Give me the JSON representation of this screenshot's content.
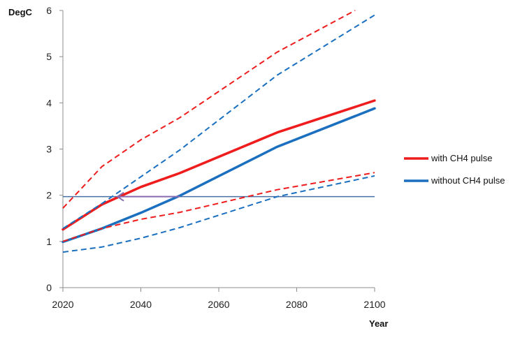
{
  "chart_data": {
    "type": "line",
    "ylabel": "DegC",
    "xlabel": "Year",
    "xlim": [
      2020,
      2100
    ],
    "ylim": [
      0,
      6
    ],
    "x_ticks": [
      "2020",
      "2040",
      "2060",
      "2080",
      "2100"
    ],
    "y_ticks": [
      "0",
      "1",
      "2",
      "3",
      "4",
      "5",
      "6"
    ],
    "grid": false,
    "legend_position": "right",
    "reference_line": {
      "y": 1.97,
      "color": "#4a6fa5"
    },
    "arrow": {
      "from": [
        2050,
        1.97
      ],
      "to": [
        2034,
        1.97
      ],
      "color": "#8a6bb0"
    },
    "series": [
      {
        "name": "with CH4 pulse",
        "color": "#ee1c1c",
        "style": "solid",
        "in_legend": true,
        "x": [
          2020,
          2030,
          2040,
          2050,
          2075,
          2100
        ],
        "y": [
          1.26,
          1.8,
          2.18,
          2.48,
          3.36,
          4.05
        ]
      },
      {
        "name": "without CH4 pulse",
        "color": "#1a6fbf",
        "style": "solid",
        "in_legend": true,
        "x": [
          2020,
          2030,
          2040,
          2050,
          2075,
          2100
        ],
        "y": [
          0.99,
          1.28,
          1.62,
          1.99,
          3.05,
          3.88
        ]
      },
      {
        "color": "#ee1c1c",
        "style": "dashed",
        "in_legend": false,
        "x": [
          2020,
          2030,
          2040,
          2050,
          2075,
          2095
        ],
        "y": [
          1.72,
          2.62,
          3.2,
          3.68,
          5.1,
          6.0
        ]
      },
      {
        "color": "#1a6fbf",
        "style": "dashed",
        "in_legend": false,
        "x": [
          2020,
          2030,
          2040,
          2050,
          2075,
          2100
        ],
        "y": [
          1.28,
          1.82,
          2.4,
          2.98,
          4.6,
          5.9
        ]
      },
      {
        "color": "#ee1c1c",
        "style": "dashed",
        "in_legend": false,
        "x": [
          2020,
          2030,
          2040,
          2050,
          2075,
          2100
        ],
        "y": [
          1.0,
          1.28,
          1.48,
          1.63,
          2.12,
          2.49
        ]
      },
      {
        "color": "#1a6fbf",
        "style": "dashed",
        "in_legend": false,
        "x": [
          2020,
          2030,
          2040,
          2050,
          2075,
          2100
        ],
        "y": [
          0.77,
          0.88,
          1.07,
          1.3,
          1.97,
          2.42
        ]
      }
    ]
  }
}
